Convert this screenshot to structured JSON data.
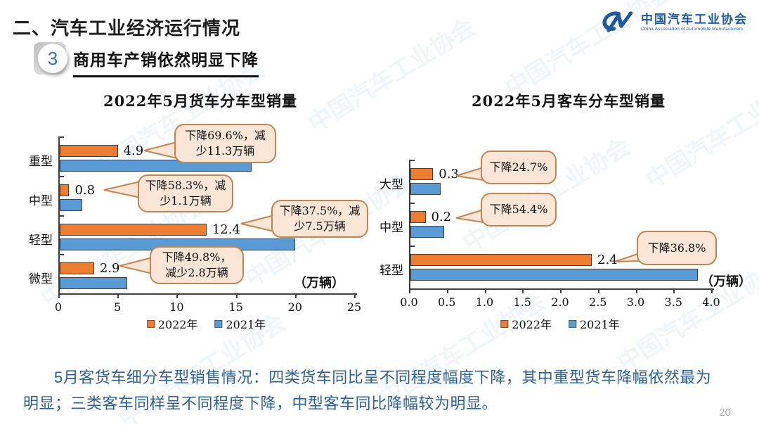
{
  "header": {
    "section_title": "二、汽车工业经济运行情况",
    "badge": "3",
    "subtitle": "商用车产销依然明显下降"
  },
  "logo": {
    "mark": "CM",
    "name_zh": "中国汽车工业协会",
    "name_en": "China Association of Automobile Manufacturers"
  },
  "watermark": {
    "text": "中国汽车工业协会"
  },
  "colors": {
    "bar_2022_orange": "#ED7D31",
    "bar_2021_blue": "#5B9BD5",
    "callout_fill": "#FBE5D6",
    "callout_border": "#C08552",
    "summary_text": "#2E6095",
    "badge_blue": "#2E74B5",
    "logo_blue": "#1D5AA0"
  },
  "chart_data": [
    {
      "type": "bar",
      "orientation": "horizontal",
      "title": "2022年5月货车分车型销量",
      "categories": [
        "重型",
        "中型",
        "轻型",
        "微型"
      ],
      "series": [
        {
          "name": "2022年",
          "color": "#ED7D31",
          "values": [
            4.9,
            0.8,
            12.4,
            2.9
          ]
        },
        {
          "name": "2021年",
          "color": "#5B9BD5",
          "values": [
            16.2,
            1.9,
            19.9,
            5.7
          ]
        }
      ],
      "data_labels": [
        "4.9",
        "0.8",
        "12.4",
        "2.9"
      ],
      "annotations": [
        "下降69.6%，减少11.3万辆",
        "下降58.3%，减少1.1万辆",
        "下降37.5%，减少7.5万辆",
        "下降49.8%，减少2.8万辆"
      ],
      "xlim": [
        0,
        25
      ],
      "xticks": [
        0,
        5,
        10,
        15,
        20,
        25
      ],
      "xtick_labels": [
        "0",
        "5",
        "10",
        "15",
        "20",
        "25"
      ],
      "unit_label": "（万辆）",
      "legend": [
        "2022年",
        "2021年"
      ],
      "legend_position": "bottom",
      "grid": false
    },
    {
      "type": "bar",
      "orientation": "horizontal",
      "title": "2022年5月客车分车型销量",
      "categories": [
        "大型",
        "中型",
        "轻型"
      ],
      "series": [
        {
          "name": "2022年",
          "color": "#ED7D31",
          "values": [
            0.3,
            0.2,
            2.4
          ]
        },
        {
          "name": "2021年",
          "color": "#5B9BD5",
          "values": [
            0.4,
            0.45,
            3.8
          ]
        }
      ],
      "data_labels": [
        "0.3",
        "0.2",
        "2.4"
      ],
      "annotations": [
        "下降24.7%",
        "下降54.4%",
        "下降36.8%"
      ],
      "xlim": [
        0,
        4
      ],
      "xticks": [
        0,
        0.5,
        1,
        1.5,
        2,
        2.5,
        3,
        3.5,
        4
      ],
      "xtick_labels": [
        "0.0",
        "0.5",
        "1.0",
        "1.5",
        "2.0",
        "2.5",
        "3.0",
        "3.5",
        "4.0"
      ],
      "unit_label": "（万辆）",
      "legend": [
        "2022年",
        "2021年"
      ],
      "legend_position": "bottom",
      "grid": false
    }
  ],
  "summary": {
    "lines": [
      "5月客货车细分车型销售情况：四类货车同比呈不同程度幅度下降，其中重型货车降幅依然最为",
      "明显；三类客车同样呈不同程度下降，中型客车同比降幅较为明显。"
    ]
  },
  "page_number": "20"
}
